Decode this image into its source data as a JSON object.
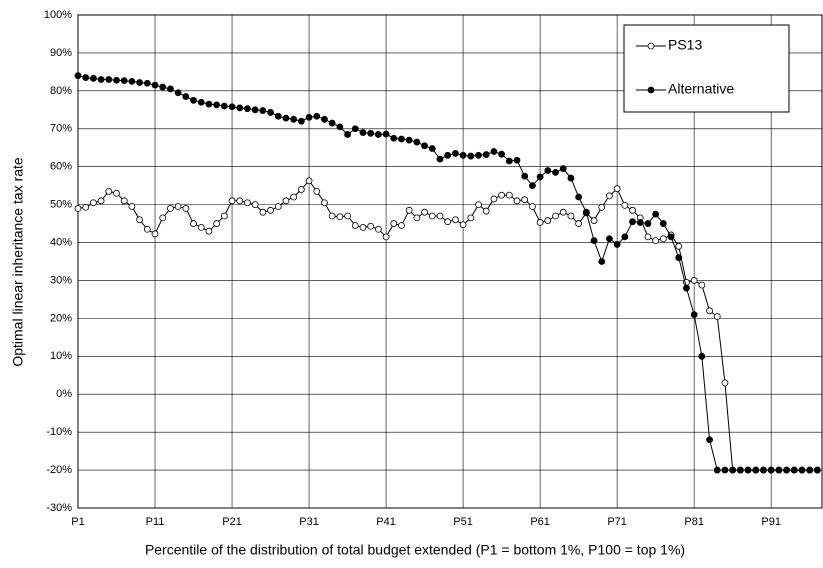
{
  "chart_data": {
    "type": "line",
    "xlabel": "Percentile of the distribution of total budget extended (P1 = bottom 1%, P100 = top 1%)",
    "ylabel": "Optimal linear inheritance tax rate",
    "x": [
      1,
      2,
      3,
      4,
      5,
      6,
      7,
      8,
      9,
      10,
      11,
      12,
      13,
      14,
      15,
      16,
      17,
      18,
      19,
      20,
      21,
      22,
      23,
      24,
      25,
      26,
      27,
      28,
      29,
      30,
      31,
      32,
      33,
      34,
      35,
      36,
      37,
      38,
      39,
      40,
      41,
      42,
      43,
      44,
      45,
      46,
      47,
      48,
      49,
      50,
      51,
      52,
      53,
      54,
      55,
      56,
      57,
      58,
      59,
      60,
      61,
      62,
      63,
      64,
      65,
      66,
      67,
      68,
      69,
      70,
      71,
      72,
      73,
      74,
      75,
      76,
      77,
      78,
      79,
      80,
      81,
      82,
      83,
      84,
      85,
      86,
      87,
      88,
      89,
      90,
      91,
      92,
      93,
      94,
      95,
      96,
      97
    ],
    "series": [
      {
        "name": "PS13",
        "color": "#000000",
        "marker": "open",
        "values": [
          49,
          49.3,
          50.5,
          51,
          53.5,
          53,
          51,
          49.5,
          46,
          43.5,
          42.3,
          46.5,
          49,
          49.5,
          49,
          45,
          44,
          43,
          45,
          47,
          51,
          51,
          50.5,
          50,
          48,
          48.5,
          49.5,
          51,
          52,
          54,
          56.3,
          53.5,
          50.5,
          47,
          46.8,
          47,
          44.5,
          44,
          44.3,
          43.5,
          41.5,
          45,
          44.5,
          48.5,
          46.5,
          48,
          47,
          47,
          45.5,
          46,
          44.7,
          46.5,
          50,
          48.3,
          51.5,
          52.5,
          52.5,
          51,
          51.3,
          49.5,
          45.3,
          45.8,
          47,
          48,
          47,
          45,
          47.8,
          45.8,
          49.3,
          52.3,
          54.2,
          49.8,
          48.5,
          46.5,
          41.5,
          40.5,
          41,
          42,
          39,
          29.5,
          30,
          28.8,
          22,
          20.5,
          3,
          -20,
          -20,
          -20,
          -20,
          -20,
          -20,
          -20,
          -20,
          -20,
          -20,
          -20,
          -20
        ]
      },
      {
        "name": "Alternative",
        "color": "#000000",
        "marker": "filled",
        "values": [
          84,
          83.5,
          83.3,
          83,
          83,
          82.8,
          82.7,
          82.5,
          82.2,
          82,
          81.5,
          81,
          80.5,
          79.5,
          78.5,
          77.5,
          77,
          76.5,
          76.3,
          76,
          75.8,
          75.5,
          75.3,
          75,
          74.8,
          74.3,
          73.3,
          72.8,
          72.5,
          72,
          73,
          73.3,
          72.5,
          71.5,
          70.5,
          68.5,
          70,
          69,
          68.8,
          68.5,
          68.6,
          67.5,
          67.3,
          67,
          66.5,
          65.5,
          64.8,
          62,
          63,
          63.5,
          63,
          62.8,
          63,
          63.2,
          64,
          63.3,
          61.5,
          61.7,
          57.5,
          55,
          57.3,
          59,
          58.5,
          59.5,
          57,
          52,
          48,
          40.5,
          35,
          41,
          39.5,
          41.5,
          45.5,
          45.3,
          45,
          47.5,
          45,
          41.5,
          36,
          28,
          21,
          10,
          -12,
          -20,
          -20,
          -20,
          -20,
          -20,
          -20,
          -20,
          -20,
          -20,
          -20,
          -20,
          -20,
          -20,
          -20
        ]
      }
    ],
    "xlim": [
      1,
      97.6
    ],
    "xticks": [
      {
        "value": 1,
        "label": "P1"
      },
      {
        "value": 11,
        "label": "P11"
      },
      {
        "value": 21,
        "label": "P21"
      },
      {
        "value": 31,
        "label": "P31"
      },
      {
        "value": 41,
        "label": "P41"
      },
      {
        "value": 51,
        "label": "P51"
      },
      {
        "value": 61,
        "label": "P61"
      },
      {
        "value": 71,
        "label": "P71"
      },
      {
        "value": 81,
        "label": "P81"
      },
      {
        "value": 91,
        "label": "P91"
      }
    ],
    "ylim": [
      -30,
      100
    ],
    "yticks": [
      {
        "value": -30,
        "label": "-30%"
      },
      {
        "value": -20,
        "label": "-20%"
      },
      {
        "value": -10,
        "label": "-10%"
      },
      {
        "value": 0,
        "label": "0%"
      },
      {
        "value": 10,
        "label": "10%"
      },
      {
        "value": 20,
        "label": "20%"
      },
      {
        "value": 30,
        "label": "30%"
      },
      {
        "value": 40,
        "label": "40%"
      },
      {
        "value": 50,
        "label": "50%"
      },
      {
        "value": 60,
        "label": "60%"
      },
      {
        "value": 70,
        "label": "70%"
      },
      {
        "value": 80,
        "label": "80%"
      },
      {
        "value": 90,
        "label": "90%"
      },
      {
        "value": 100,
        "label": "100%"
      }
    ],
    "grid": true,
    "legend": "upper right"
  }
}
